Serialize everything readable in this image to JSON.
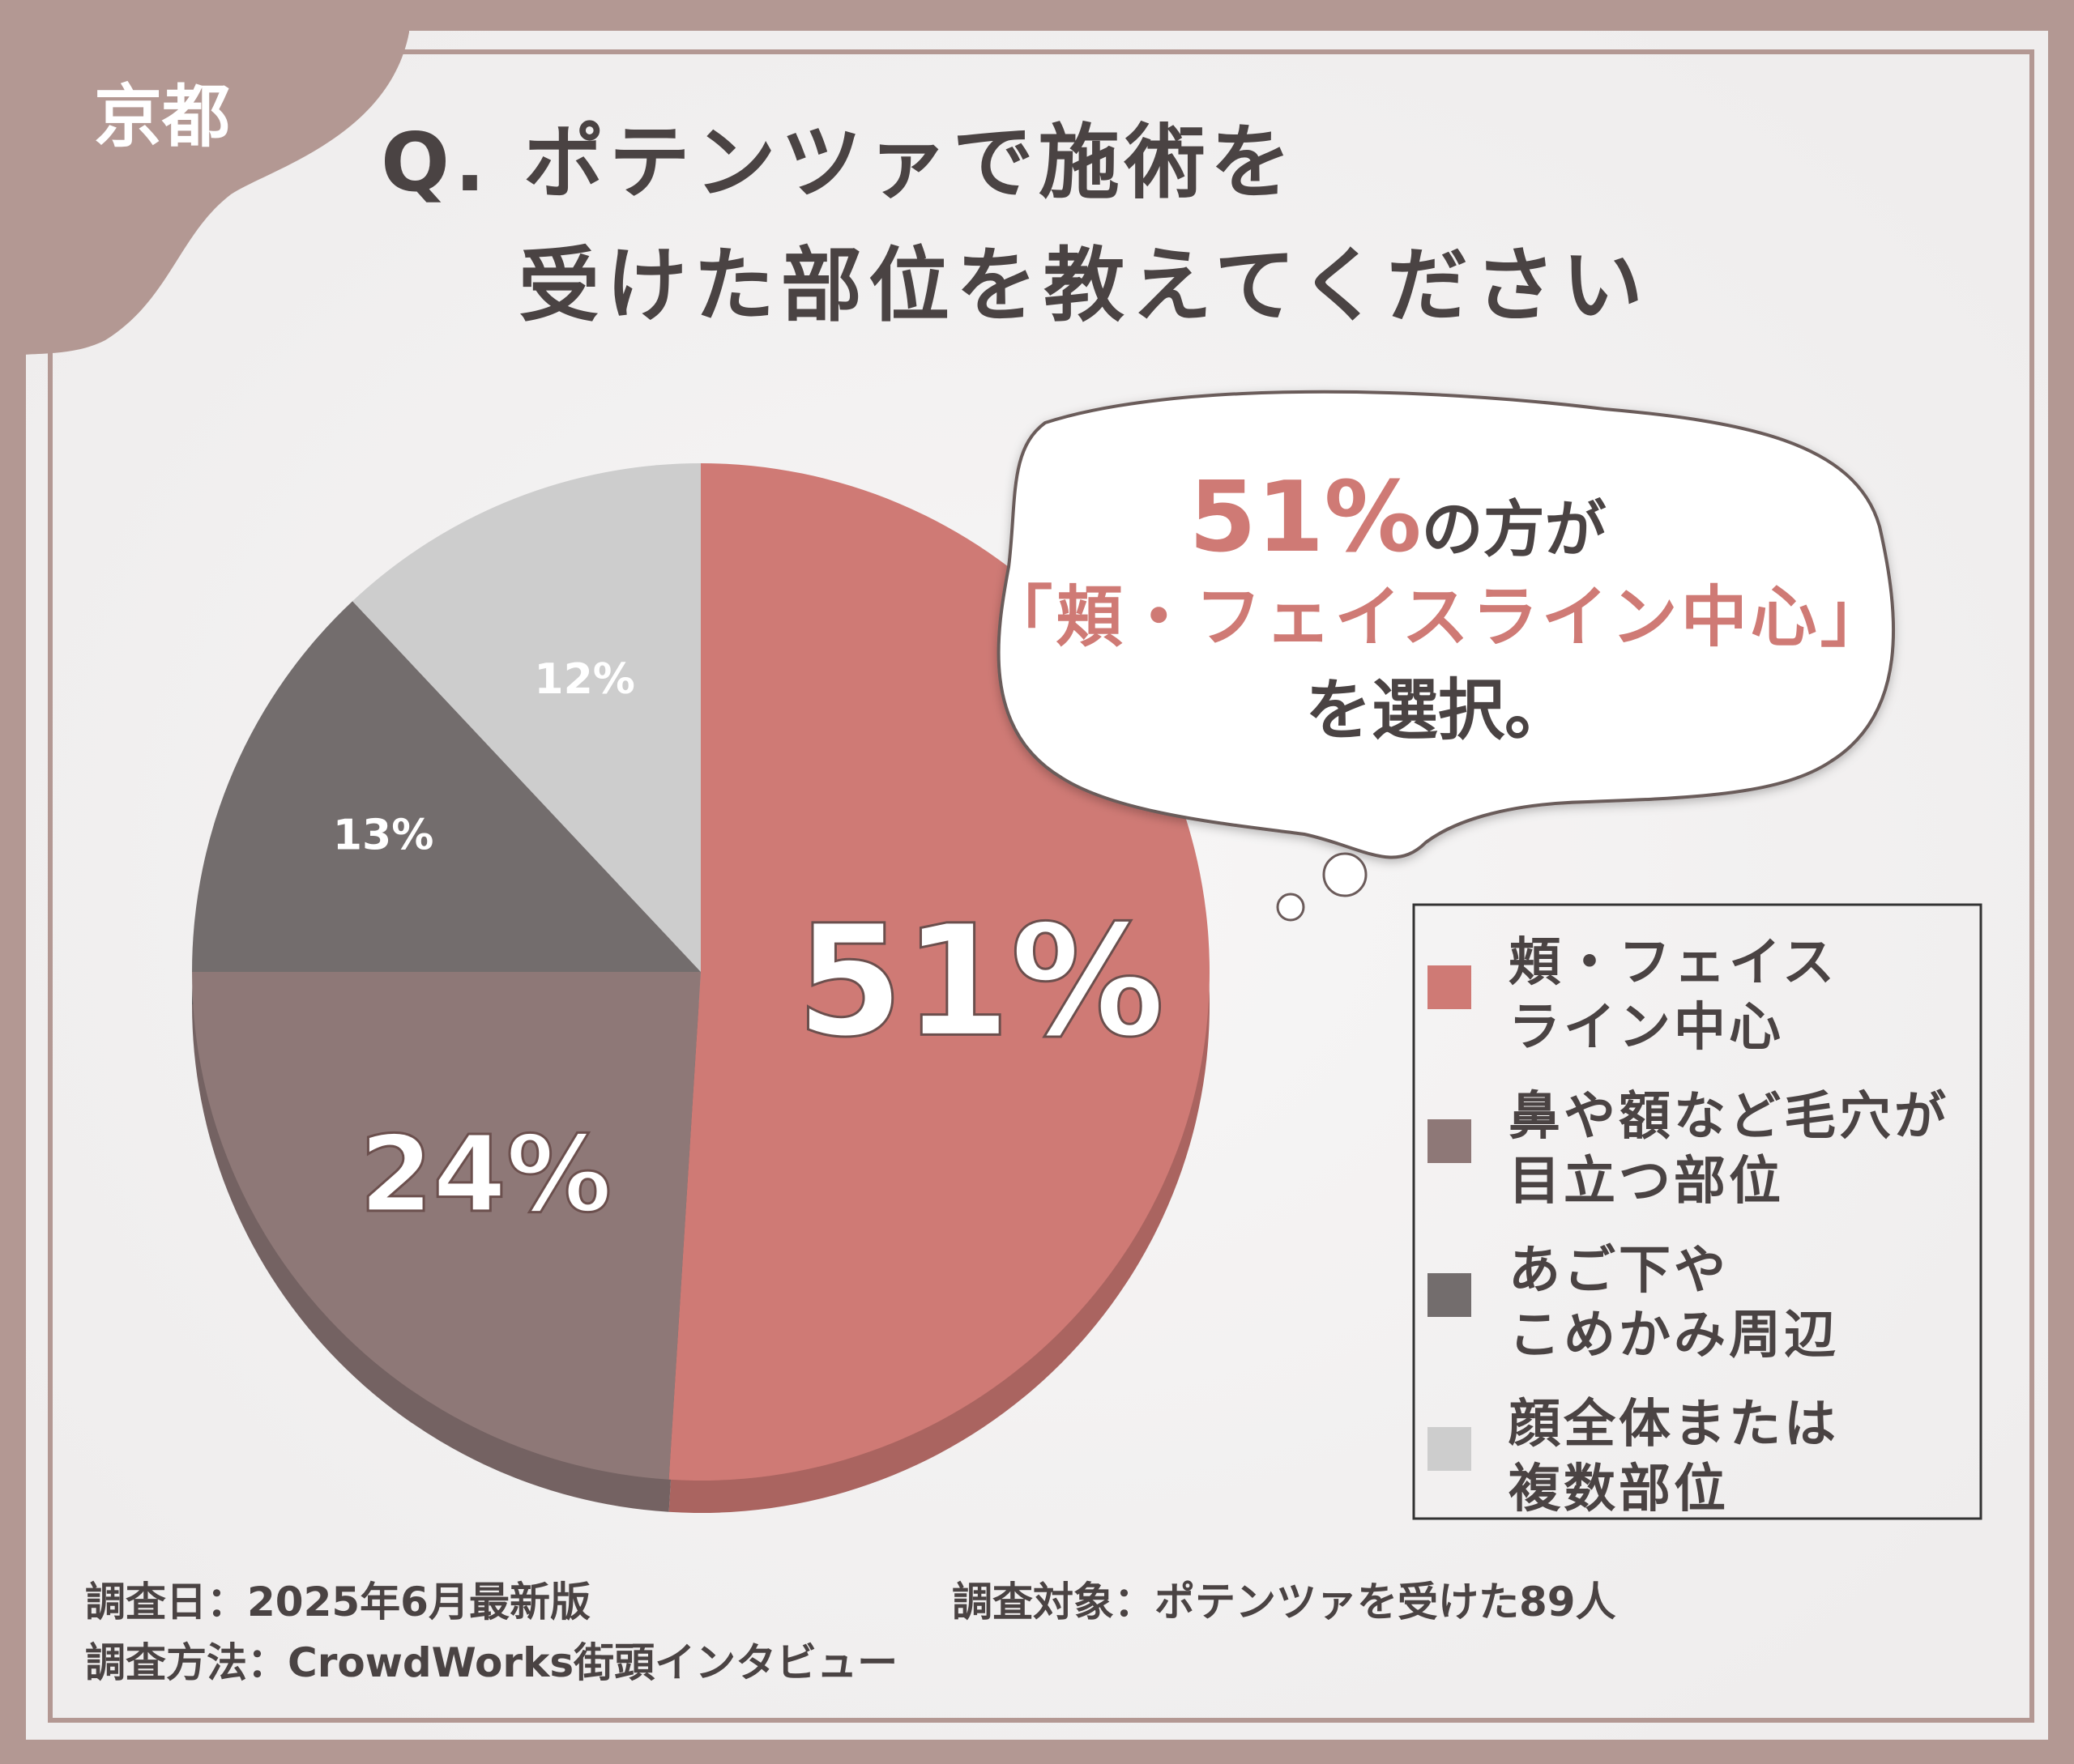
{
  "region_label": "京都",
  "question": {
    "line1": "Q. ポテンツァで施術を",
    "line2": "受けた部位を教えてください"
  },
  "callout": {
    "percent": "51%",
    "line1_suffix": "の方が",
    "line2": "「頬・フェイスライン中心」",
    "line3": "を選択。"
  },
  "footer": {
    "date": "調査日：2025年6月最新版",
    "target": "調査対象：ポテンツァを受けた89人",
    "method": "調査方法：CrowdWorks街頭インタビュー"
  },
  "colors": {
    "frame": "#b39893",
    "accent": "#cf7a75",
    "text_dark": "#4a4343",
    "series": [
      "#cf7a75",
      "#8e7877",
      "#736d6d",
      "#cdcdcd"
    ]
  },
  "chart_data": {
    "type": "pie",
    "start": "12 o'clock, clockwise",
    "slices": [
      {
        "label": "頬・フェイスライン中心",
        "value": 51,
        "display": "51%",
        "legend_lines": [
          "頬・フェイス",
          "ライン中心"
        ],
        "color": "#cf7a75"
      },
      {
        "label": "鼻や額など毛穴が目立つ部位",
        "value": 24,
        "display": "24%",
        "legend_lines": [
          "鼻や額など毛穴が",
          "目立つ部位"
        ],
        "color": "#8e7877"
      },
      {
        "label": "あご下やこめかみ周辺",
        "value": 13,
        "display": "13%",
        "legend_lines": [
          "あご下や",
          "こめかみ周辺"
        ],
        "color": "#736d6d"
      },
      {
        "label": "顔全体または複数部位",
        "value": 12,
        "display": "12%",
        "legend_lines": [
          "顔全体または",
          "複数部位"
        ],
        "color": "#cdcdcd"
      }
    ],
    "legend_position": "right"
  }
}
